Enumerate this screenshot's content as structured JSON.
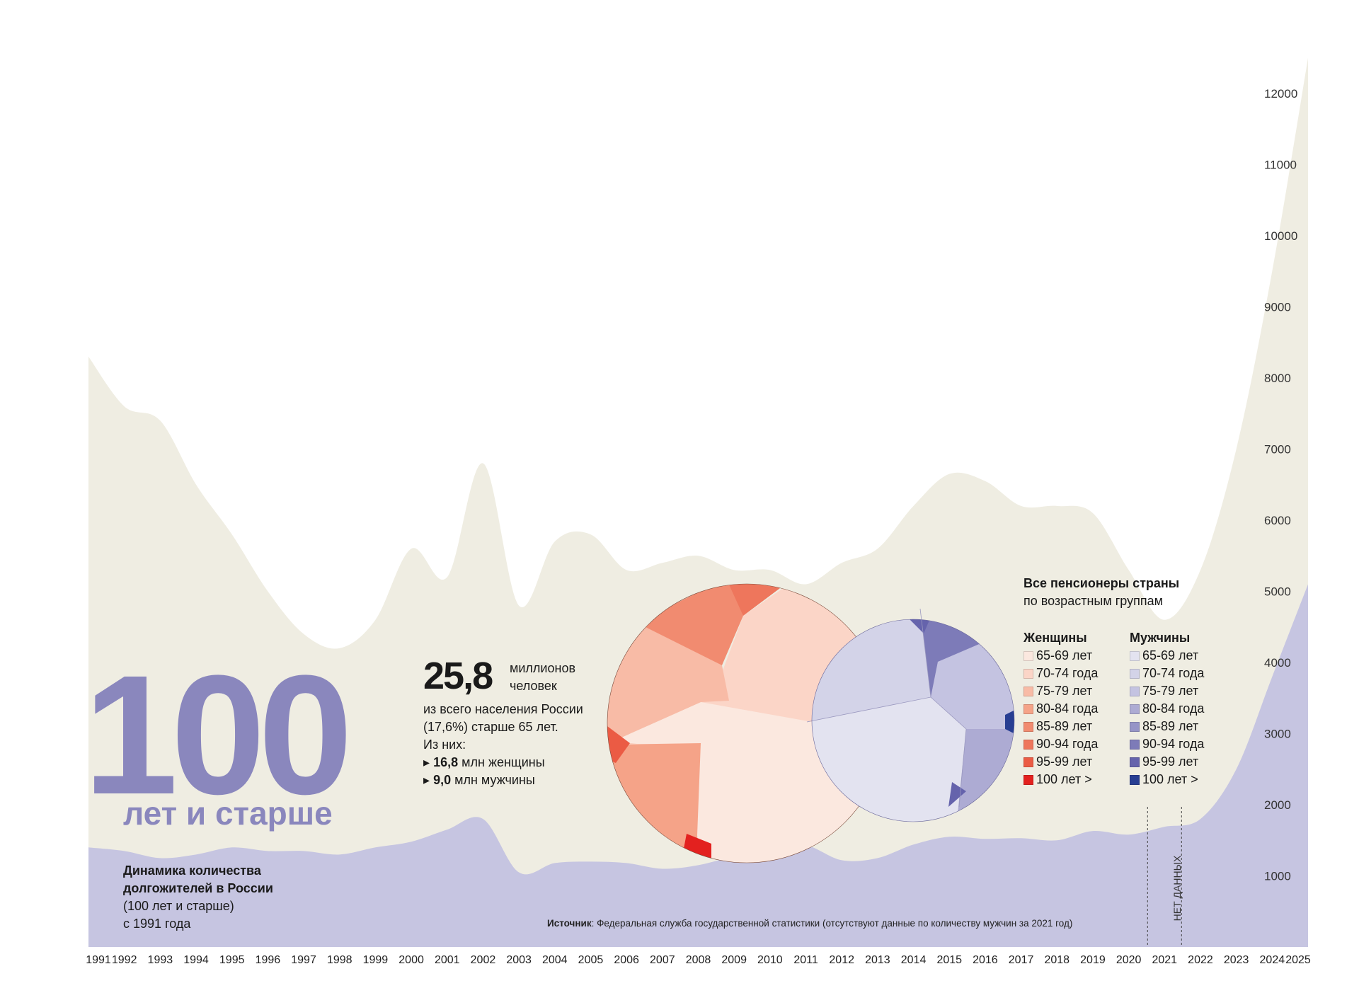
{
  "chart_data": {
    "type": "area",
    "title": "",
    "xlabel": "",
    "ylabel": "",
    "ylim": [
      0,
      12500
    ],
    "yticks": [
      1000,
      2000,
      3000,
      4000,
      5000,
      6000,
      7000,
      8000,
      9000,
      10000,
      11000,
      12000
    ],
    "grid": false,
    "x": [
      "1991",
      "1992",
      "1993",
      "1994",
      "1995",
      "1996",
      "1997",
      "1998",
      "1999",
      "2000",
      "2001",
      "2002",
      "2003",
      "2004",
      "2005",
      "2006",
      "2007",
      "2008",
      "2009",
      "2010",
      "2011",
      "2012",
      "2013",
      "2014",
      "2015",
      "2016",
      "2017",
      "2018",
      "2019",
      "2020",
      "2021",
      "2022",
      "2023",
      "2024",
      "2025"
    ],
    "series": [
      {
        "color": "#efede2",
        "values": [
          8300,
          7600,
          7400,
          6500,
          5800,
          5000,
          4400,
          4200,
          4600,
          5600,
          5200,
          6800,
          4800,
          5700,
          5800,
          5300,
          5400,
          5500,
          5300,
          5300,
          5100,
          5400,
          5600,
          6200,
          6650,
          6550,
          6200,
          6200,
          6100,
          5300,
          4600,
          5300,
          7000,
          9500,
          12500
        ]
      },
      {
        "color": "#c6c5e1",
        "values": [
          1400,
          1350,
          1250,
          1300,
          1400,
          1350,
          1350,
          1300,
          1400,
          1480,
          1650,
          1800,
          1050,
          1180,
          1200,
          1180,
          1100,
          1150,
          1280,
          1400,
          1430,
          1220,
          1250,
          1440,
          1550,
          1520,
          1530,
          1500,
          1630,
          1580,
          null,
          1800,
          2500,
          3800,
          5100
        ]
      }
    ],
    "no_data_label": "НЕТ ДАННЫХ",
    "annotations": [
      {
        "text": "Источник",
        "rest": ": Федеральная служба государственной статистики (отсутствуют данные по количеству мужчин за 2021 год)"
      }
    ],
    "inset": {
      "type": "voronoi-treemap",
      "title": "Все пенсионеры страны",
      "subtitle": "по возрастным группам",
      "groups": [
        {
          "name": "Женщины",
          "items": [
            {
              "label": "65-69 лет",
              "color": "#fbe8df"
            },
            {
              "label": "70-74 года",
              "color": "#fbd5c7"
            },
            {
              "label": "75-79 лет",
              "color": "#f8bba6"
            },
            {
              "label": "80-84 года",
              "color": "#f5a388"
            },
            {
              "label": "85-89 лет",
              "color": "#f18b70"
            },
            {
              "label": "90-94 года",
              "color": "#ee765c"
            },
            {
              "label": "95-99 лет",
              "color": "#eb5b44"
            },
            {
              "label": "100 лет >",
              "color": "#e3211f"
            }
          ]
        },
        {
          "name": "Мужчины",
          "items": [
            {
              "label": "65-69 лет",
              "color": "#e3e3f0"
            },
            {
              "label": "70-74 года",
              "color": "#d3d3e8"
            },
            {
              "label": "75-79 лет",
              "color": "#c4c3e1"
            },
            {
              "label": "80-84 года",
              "color": "#adabd3"
            },
            {
              "label": "85-89 лет",
              "color": "#9694c7"
            },
            {
              "label": "90-94 года",
              "color": "#7d7bb8"
            },
            {
              "label": "95-99 лет",
              "color": "#6563ac"
            },
            {
              "label": "100 лет >",
              "color": "#283e92"
            }
          ]
        }
      ]
    }
  },
  "headline": {
    "number": "100",
    "subtitle": "лет и старше",
    "desc_bold_1": "Динамика количества",
    "desc_bold_2": "долгожителей в России",
    "desc_line_3": "(100 лет и старше)",
    "desc_line_4": "с 1991 года"
  },
  "stats": {
    "total": "25,8",
    "unit_1": "миллионов",
    "unit_2": "человек",
    "line_1": "из всего населения России",
    "line_2": "(17,6%) старше 65 лет.",
    "line_3": "Из них:",
    "women_num": "16,8",
    "women_text": "млн женщины",
    "men_num": "9,0",
    "men_text": "млн мужчины",
    "bullet": "▸"
  }
}
